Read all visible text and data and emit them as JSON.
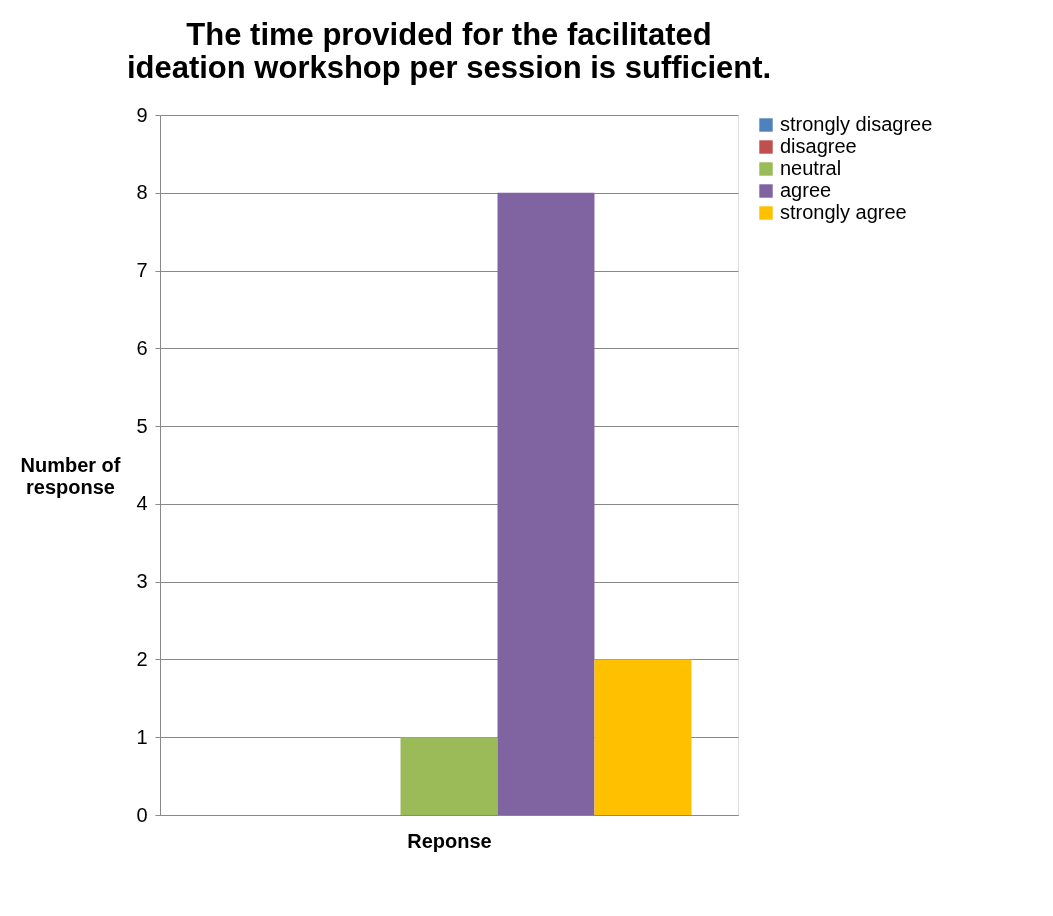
{
  "chart_data": {
    "type": "bar",
    "title": "The time provided for the facilitated ideation workshop per session is sufficient.",
    "xlabel": "Reponse",
    "ylabel": "Number of response",
    "categories": [
      null
    ],
    "series": [
      {
        "name": "strongly disagree",
        "color": "#4f81bd",
        "values": [
          0
        ]
      },
      {
        "name": "disagree",
        "color": "#c0504d",
        "values": [
          0
        ]
      },
      {
        "name": "neutral",
        "color": "#9bbb59",
        "values": [
          1
        ]
      },
      {
        "name": "agree",
        "color": "#8064a2",
        "values": [
          8
        ]
      },
      {
        "name": "strongly agree",
        "color": "#ffc000",
        "values": [
          2
        ]
      }
    ],
    "ylim": [
      0,
      9
    ],
    "yticks": [
      0,
      1,
      2,
      3,
      4,
      5,
      6,
      7,
      8,
      9
    ],
    "grid": "y",
    "legend": "right"
  }
}
